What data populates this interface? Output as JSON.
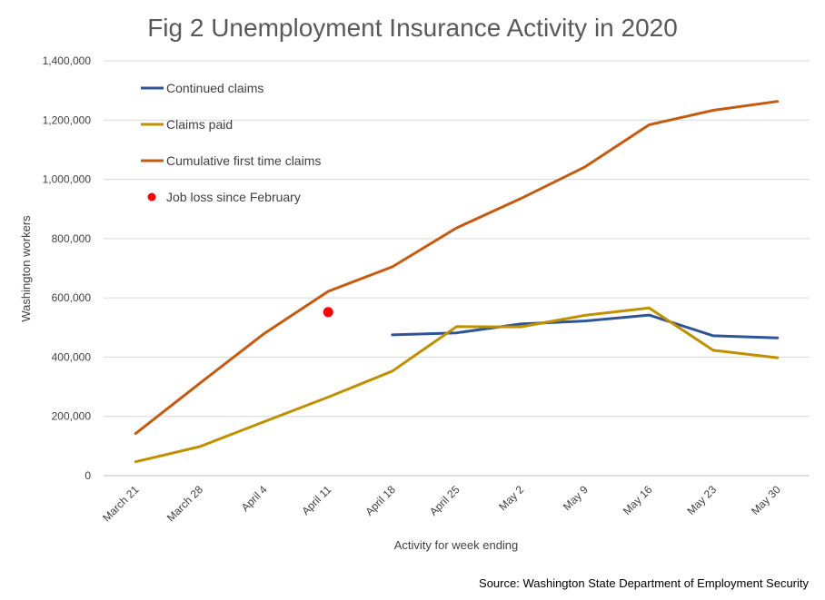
{
  "chart_data": {
    "type": "line",
    "title": "Fig 2 Unemployment Insurance Activity in 2020",
    "xlabel": "Activity for week ending",
    "ylabel": "Washington workers",
    "source": "Source: Washington State Department of Employment Security",
    "categories": [
      "March 21",
      "March 28",
      "April 4",
      "April 11",
      "April 18",
      "April 25",
      "May 2",
      "May 9",
      "May 16",
      "May 23",
      "May 30"
    ],
    "ylim": [
      0,
      1400000
    ],
    "y_ticks": [
      0,
      200000,
      400000,
      600000,
      800000,
      1000000,
      1200000,
      1400000
    ],
    "y_tick_labels": [
      "0",
      "200,000",
      "400,000",
      "600,000",
      "800,000",
      "1,000,000",
      "1,200,000",
      "1,400,000"
    ],
    "grid": true,
    "legend_position": "top-left",
    "series": [
      {
        "name": "Continued claims",
        "color": "#2F5597",
        "values": [
          null,
          null,
          null,
          null,
          475000,
          482000,
          512000,
          522000,
          542000,
          472000,
          465000
        ]
      },
      {
        "name": "Claims paid",
        "color": "#BF9000",
        "values": [
          47000,
          98000,
          182000,
          265000,
          353000,
          503000,
          502000,
          541000,
          566000,
          423000,
          398000
        ]
      },
      {
        "name": "Cumulative first time claims",
        "color": "#C55A11",
        "values": [
          142000,
          312000,
          479000,
          622000,
          705000,
          836000,
          935000,
          1042000,
          1184000,
          1233000,
          1263000
        ]
      }
    ],
    "points": [
      {
        "name": "Job loss since February",
        "color": "#FF0000",
        "x": "April 11",
        "y": 552000
      }
    ]
  }
}
